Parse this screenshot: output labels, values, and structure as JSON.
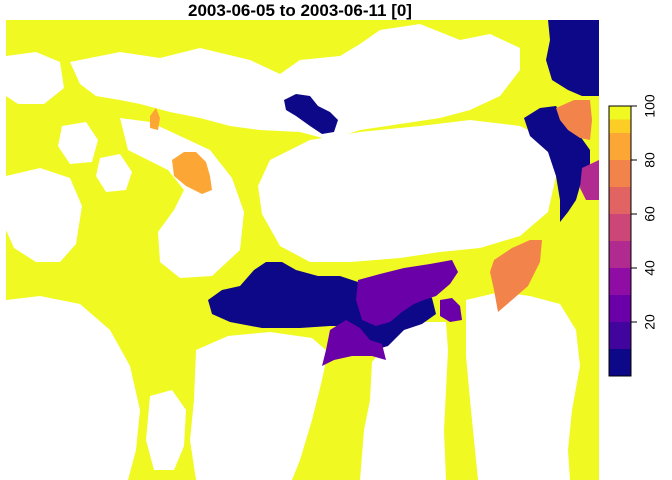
{
  "map": {
    "title": "2003-06-05 to 2003-06-11 [0]"
  },
  "legend": {
    "palette": [
      "#0D0887",
      "#41049D",
      "#6A00A8",
      "#8F0DA4",
      "#B12A90",
      "#CC4778",
      "#E16462",
      "#F2844B",
      "#FCA636",
      "#FCCE25",
      "#F0F921"
    ],
    "range": [
      0,
      100
    ],
    "ticks": [
      "20",
      "40",
      "60",
      "80",
      "100"
    ],
    "tick_values": [
      20,
      40,
      60,
      80,
      100
    ]
  },
  "colors": {
    "low": "#0D0887",
    "purple": "#6A00A8",
    "magenta": "#8F0DA4",
    "orange": "#F2844B",
    "amber": "#FCA636",
    "high": "#F0F921",
    "land": "#FFFFFF"
  }
}
